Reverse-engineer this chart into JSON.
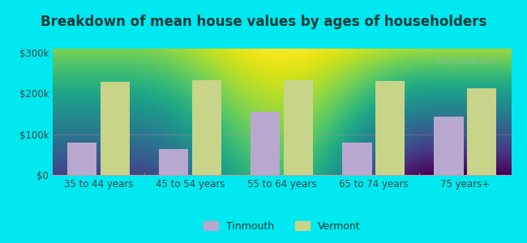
{
  "title": "Breakdown of mean house values by ages of householders",
  "categories": [
    "35 to 44 years",
    "45 to 54 years",
    "55 to 64 years",
    "65 to 74 years",
    "75 years+"
  ],
  "tinmouth_values": [
    80000,
    63000,
    155000,
    80000,
    143000
  ],
  "vermont_values": [
    228000,
    232000,
    233000,
    230000,
    212000
  ],
  "tinmouth_color": "#b8a8d0",
  "vermont_color": "#c8d48a",
  "background_outer": "#00e8f0",
  "background_inner_top": "#f5fff8",
  "background_inner_bottom": "#d8eecc",
  "yticks": [
    0,
    100000,
    200000,
    300000
  ],
  "ytick_labels": [
    "$0",
    "$100k",
    "$200k",
    "$300k"
  ],
  "ylim": [
    0,
    310000
  ],
  "bar_width": 0.32,
  "legend_tinmouth": "Tinmouth",
  "legend_vermont": "Vermont",
  "title_fontsize": 12,
  "tick_fontsize": 8.5,
  "legend_fontsize": 9,
  "title_color": "#1a3a3a",
  "tick_color": "#444444"
}
